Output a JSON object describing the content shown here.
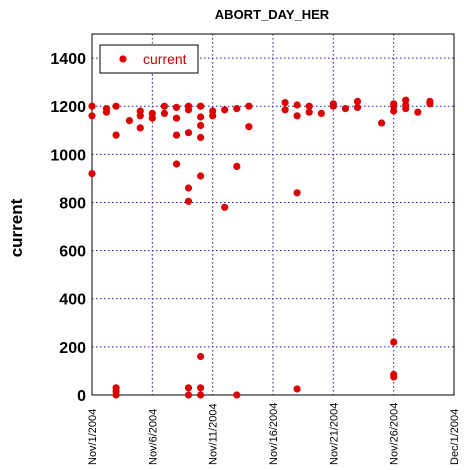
{
  "chart_data": {
    "type": "scatter",
    "title": "ABORT_DAY_HER",
    "xlabel": "",
    "ylabel": "current",
    "x_ticks": [
      "Nov/1/2004",
      "Nov/6/2004",
      "Nov/11/2004",
      "Nov/16/2004",
      "Nov/21/2004",
      "Nov/26/2004",
      "Dec/1/2004"
    ],
    "xlim": [
      "2004-11-01",
      "2004-12-01"
    ],
    "ylim": [
      0,
      1500
    ],
    "y_ticks": [
      0,
      200,
      400,
      600,
      800,
      1000,
      1200,
      1400
    ],
    "grid": true,
    "legend": "top-left",
    "color": "#dd0000",
    "series": [
      {
        "name": "current",
        "points": [
          [
            "2004-11-01 00:00",
            1200
          ],
          [
            "2004-11-01 00:00",
            1160
          ],
          [
            "2004-11-01 00:00",
            920
          ],
          [
            "2004-11-02 04:48",
            1175
          ],
          [
            "2004-11-02 04:48",
            1190
          ],
          [
            "2004-11-03 00:00",
            1200
          ],
          [
            "2004-11-03 00:00",
            1080
          ],
          [
            "2004-11-03 00:00",
            30
          ],
          [
            "2004-11-03 00:00",
            15
          ],
          [
            "2004-11-03 00:00",
            0
          ],
          [
            "2004-11-04 02:24",
            1140
          ],
          [
            "2004-11-05 00:00",
            1180
          ],
          [
            "2004-11-05 00:00",
            1160
          ],
          [
            "2004-11-05 00:00",
            1110
          ],
          [
            "2004-11-06 00:00",
            1170
          ],
          [
            "2004-11-06 00:00",
            1150
          ],
          [
            "2004-11-07 00:00",
            1200
          ],
          [
            "2004-11-07 00:00",
            1170
          ],
          [
            "2004-11-08 00:00",
            1195
          ],
          [
            "2004-11-08 00:00",
            1150
          ],
          [
            "2004-11-08 00:00",
            1080
          ],
          [
            "2004-11-08 00:00",
            960
          ],
          [
            "2004-11-09 00:00",
            1200
          ],
          [
            "2004-11-09 00:00",
            1185
          ],
          [
            "2004-11-09 00:00",
            1090
          ],
          [
            "2004-11-09 00:00",
            860
          ],
          [
            "2004-11-09 00:00",
            805
          ],
          [
            "2004-11-09 00:00",
            30
          ],
          [
            "2004-11-09 00:00",
            0
          ],
          [
            "2004-11-10 00:00",
            1200
          ],
          [
            "2004-11-10 00:00",
            1155
          ],
          [
            "2004-11-10 00:00",
            1120
          ],
          [
            "2004-11-10 00:00",
            1070
          ],
          [
            "2004-11-10 00:00",
            910
          ],
          [
            "2004-11-10 00:00",
            160
          ],
          [
            "2004-11-10 00:00",
            30
          ],
          [
            "2004-11-10 00:00",
            0
          ],
          [
            "2004-11-11 00:00",
            1180
          ],
          [
            "2004-11-11 00:00",
            1160
          ],
          [
            "2004-11-12 00:00",
            1185
          ],
          [
            "2004-11-12 00:00",
            780
          ],
          [
            "2004-11-13 00:00",
            1190
          ],
          [
            "2004-11-13 00:00",
            950
          ],
          [
            "2004-11-13 00:00",
            0
          ],
          [
            "2004-11-14 00:00",
            1200
          ],
          [
            "2004-11-14 00:00",
            1115
          ],
          [
            "2004-11-17 00:00",
            1215
          ],
          [
            "2004-11-17 00:00",
            1185
          ],
          [
            "2004-11-18 00:00",
            1205
          ],
          [
            "2004-11-18 00:00",
            1160
          ],
          [
            "2004-11-18 00:00",
            840
          ],
          [
            "2004-11-18 00:00",
            25
          ],
          [
            "2004-11-19 00:00",
            1200
          ],
          [
            "2004-11-19 00:00",
            1175
          ],
          [
            "2004-11-20 00:00",
            1170
          ],
          [
            "2004-11-21 00:00",
            1210
          ],
          [
            "2004-11-21 00:00",
            1200
          ],
          [
            "2004-11-22 00:00",
            1190
          ],
          [
            "2004-11-23 00:00",
            1220
          ],
          [
            "2004-11-23 00:00",
            1195
          ],
          [
            "2004-11-25 00:00",
            1130
          ],
          [
            "2004-11-26 00:00",
            1210
          ],
          [
            "2004-11-26 00:00",
            1200
          ],
          [
            "2004-11-26 00:00",
            1180
          ],
          [
            "2004-11-26 00:00",
            220
          ],
          [
            "2004-11-26 00:00",
            85
          ],
          [
            "2004-11-26 00:00",
            75
          ],
          [
            "2004-11-27 00:00",
            1225
          ],
          [
            "2004-11-27 00:00",
            1205
          ],
          [
            "2004-11-27 00:00",
            1190
          ],
          [
            "2004-11-28 00:00",
            1175
          ],
          [
            "2004-11-29 00:00",
            1220
          ],
          [
            "2004-11-29 00:00",
            1210
          ]
        ]
      }
    ]
  }
}
